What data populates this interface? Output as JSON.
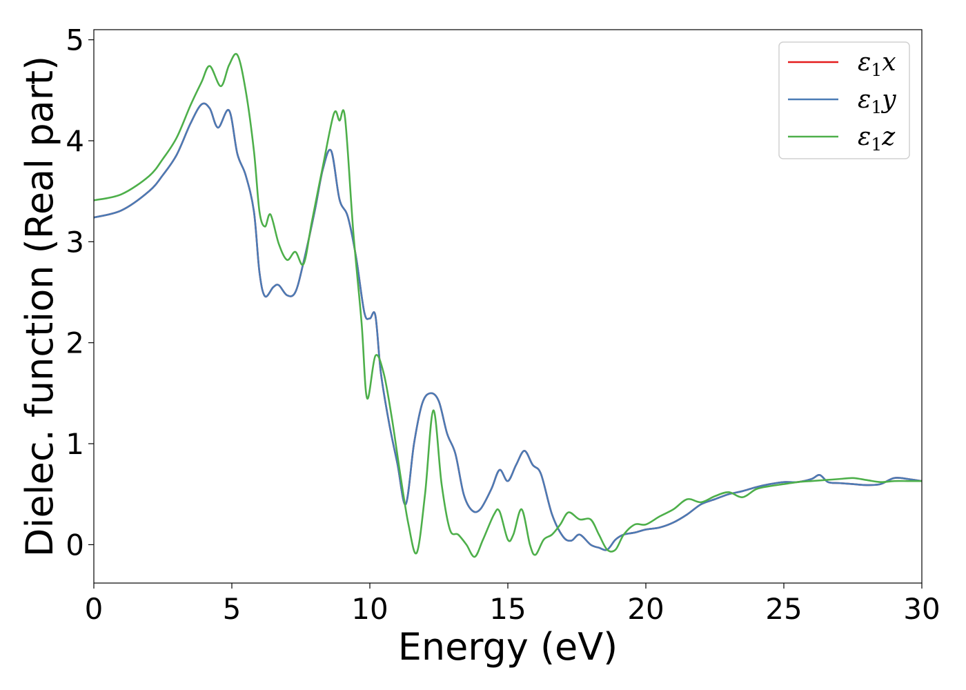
{
  "chart_data": {
    "type": "line",
    "title": "",
    "xlabel": "Energy (eV)",
    "ylabel": "Dielec. function (Real part)",
    "xlim": [
      0,
      30
    ],
    "ylim": [
      -0.38,
      5.1
    ],
    "xticks": [
      0,
      5,
      10,
      15,
      20,
      25,
      30
    ],
    "yticks": [
      0,
      1,
      2,
      3,
      4,
      5
    ],
    "grid": false,
    "legend_position": "top-right",
    "series": [
      {
        "name": "ε₁x",
        "legend_base": "ε",
        "legend_sub": "1",
        "legend_var": "x",
        "color": "#e41a1c",
        "x": [
          0,
          1,
          2,
          2.5,
          3,
          3.5,
          3.9,
          4.2,
          4.5,
          4.9,
          5.2,
          5.5,
          5.8,
          6.0,
          6.2,
          6.5,
          6.7,
          7.0,
          7.3,
          7.6,
          8.0,
          8.3,
          8.6,
          8.9,
          9.2,
          9.5,
          9.8,
          10.0,
          10.2,
          10.4,
          10.7,
          11.0,
          11.3,
          11.6,
          11.9,
          12.2,
          12.5,
          12.8,
          13.1,
          13.4,
          13.7,
          14.0,
          14.4,
          14.7,
          15.0,
          15.3,
          15.6,
          15.9,
          16.2,
          16.6,
          17.0,
          17.3,
          17.6,
          18.0,
          18.3,
          18.6,
          18.9,
          19.2,
          19.6,
          20.0,
          20.5,
          21.0,
          21.5,
          22.0,
          22.5,
          23.0,
          23.5,
          24.0,
          24.5,
          25.0,
          25.5,
          26.0,
          26.3,
          26.6,
          27.0,
          27.5,
          28.0,
          28.5,
          29.0,
          29.5,
          30.0
        ],
        "y": [
          3.24,
          3.31,
          3.5,
          3.66,
          3.86,
          4.17,
          4.36,
          4.32,
          4.13,
          4.3,
          3.87,
          3.66,
          3.3,
          2.7,
          2.46,
          2.55,
          2.57,
          2.47,
          2.5,
          2.8,
          3.3,
          3.72,
          3.9,
          3.42,
          3.25,
          2.85,
          2.3,
          2.24,
          2.27,
          1.7,
          1.2,
          0.8,
          0.4,
          1.0,
          1.4,
          1.5,
          1.42,
          1.1,
          0.9,
          0.5,
          0.34,
          0.35,
          0.55,
          0.74,
          0.63,
          0.79,
          0.93,
          0.79,
          0.7,
          0.3,
          0.08,
          0.04,
          0.1,
          0.0,
          -0.03,
          -0.05,
          0.05,
          0.1,
          0.12,
          0.15,
          0.17,
          0.22,
          0.3,
          0.4,
          0.45,
          0.5,
          0.53,
          0.57,
          0.6,
          0.62,
          0.62,
          0.65,
          0.69,
          0.62,
          0.61,
          0.6,
          0.59,
          0.6,
          0.66,
          0.65,
          0.63
        ]
      },
      {
        "name": "ε₁y",
        "legend_base": "ε",
        "legend_sub": "1",
        "legend_var": "y",
        "color": "#4a7bb5",
        "x": [
          0,
          1,
          2,
          2.5,
          3,
          3.5,
          3.9,
          4.2,
          4.5,
          4.9,
          5.2,
          5.5,
          5.8,
          6.0,
          6.2,
          6.5,
          6.7,
          7.0,
          7.3,
          7.6,
          8.0,
          8.3,
          8.6,
          8.9,
          9.2,
          9.5,
          9.8,
          10.0,
          10.2,
          10.4,
          10.7,
          11.0,
          11.3,
          11.6,
          11.9,
          12.2,
          12.5,
          12.8,
          13.1,
          13.4,
          13.7,
          14.0,
          14.4,
          14.7,
          15.0,
          15.3,
          15.6,
          15.9,
          16.2,
          16.6,
          17.0,
          17.3,
          17.6,
          18.0,
          18.3,
          18.6,
          18.9,
          19.2,
          19.6,
          20.0,
          20.5,
          21.0,
          21.5,
          22.0,
          22.5,
          23.0,
          23.5,
          24.0,
          24.5,
          25.0,
          25.5,
          26.0,
          26.3,
          26.6,
          27.0,
          27.5,
          28.0,
          28.5,
          29.0,
          29.5,
          30.0
        ],
        "y": [
          3.24,
          3.31,
          3.5,
          3.66,
          3.86,
          4.17,
          4.36,
          4.32,
          4.13,
          4.3,
          3.87,
          3.66,
          3.3,
          2.7,
          2.46,
          2.55,
          2.57,
          2.47,
          2.5,
          2.8,
          3.3,
          3.72,
          3.9,
          3.42,
          3.25,
          2.85,
          2.3,
          2.24,
          2.27,
          1.7,
          1.2,
          0.8,
          0.4,
          1.0,
          1.4,
          1.5,
          1.42,
          1.1,
          0.9,
          0.5,
          0.34,
          0.35,
          0.55,
          0.74,
          0.63,
          0.79,
          0.93,
          0.79,
          0.7,
          0.3,
          0.08,
          0.04,
          0.1,
          0.0,
          -0.03,
          -0.05,
          0.05,
          0.1,
          0.12,
          0.15,
          0.17,
          0.22,
          0.3,
          0.4,
          0.45,
          0.5,
          0.53,
          0.57,
          0.6,
          0.62,
          0.62,
          0.65,
          0.69,
          0.62,
          0.61,
          0.6,
          0.59,
          0.6,
          0.66,
          0.65,
          0.63
        ]
      },
      {
        "name": "ε₁z",
        "legend_base": "ε",
        "legend_sub": "1",
        "legend_var": "z",
        "color": "#4daf4a",
        "x": [
          0,
          1,
          2,
          2.5,
          3,
          3.5,
          3.9,
          4.2,
          4.6,
          4.9,
          5.2,
          5.5,
          5.8,
          6.0,
          6.2,
          6.4,
          6.7,
          7.0,
          7.3,
          7.6,
          7.9,
          8.3,
          8.7,
          8.9,
          9.1,
          9.4,
          9.7,
          9.9,
          10.2,
          10.5,
          10.8,
          11.1,
          11.4,
          11.7,
          12.0,
          12.3,
          12.6,
          12.9,
          13.2,
          13.5,
          13.8,
          14.1,
          14.5,
          14.7,
          15.0,
          15.2,
          15.5,
          15.8,
          16.0,
          16.3,
          16.6,
          16.9,
          17.2,
          17.6,
          18.0,
          18.3,
          18.6,
          18.9,
          19.2,
          19.6,
          20.0,
          20.5,
          21.0,
          21.5,
          22.0,
          22.5,
          23.0,
          23.5,
          24.0,
          24.5,
          25.0,
          25.5,
          26.0,
          26.5,
          27.0,
          27.5,
          28.0,
          28.5,
          29.0,
          29.5,
          30.0
        ],
        "y": [
          3.41,
          3.47,
          3.65,
          3.82,
          4.03,
          4.35,
          4.58,
          4.74,
          4.54,
          4.75,
          4.85,
          4.5,
          3.9,
          3.3,
          3.15,
          3.27,
          2.98,
          2.82,
          2.9,
          2.78,
          3.2,
          3.75,
          4.27,
          4.2,
          4.23,
          3.1,
          2.2,
          1.45,
          1.87,
          1.7,
          1.25,
          0.7,
          0.2,
          -0.08,
          0.5,
          1.33,
          0.6,
          0.15,
          0.1,
          0.0,
          -0.12,
          0.05,
          0.3,
          0.33,
          0.05,
          0.1,
          0.35,
          0.0,
          -0.1,
          0.05,
          0.1,
          0.2,
          0.32,
          0.25,
          0.25,
          0.1,
          -0.05,
          -0.05,
          0.1,
          0.2,
          0.2,
          0.28,
          0.35,
          0.45,
          0.42,
          0.48,
          0.52,
          0.47,
          0.55,
          0.58,
          0.6,
          0.62,
          0.63,
          0.64,
          0.65,
          0.66,
          0.64,
          0.62,
          0.63,
          0.63,
          0.63
        ]
      }
    ]
  }
}
